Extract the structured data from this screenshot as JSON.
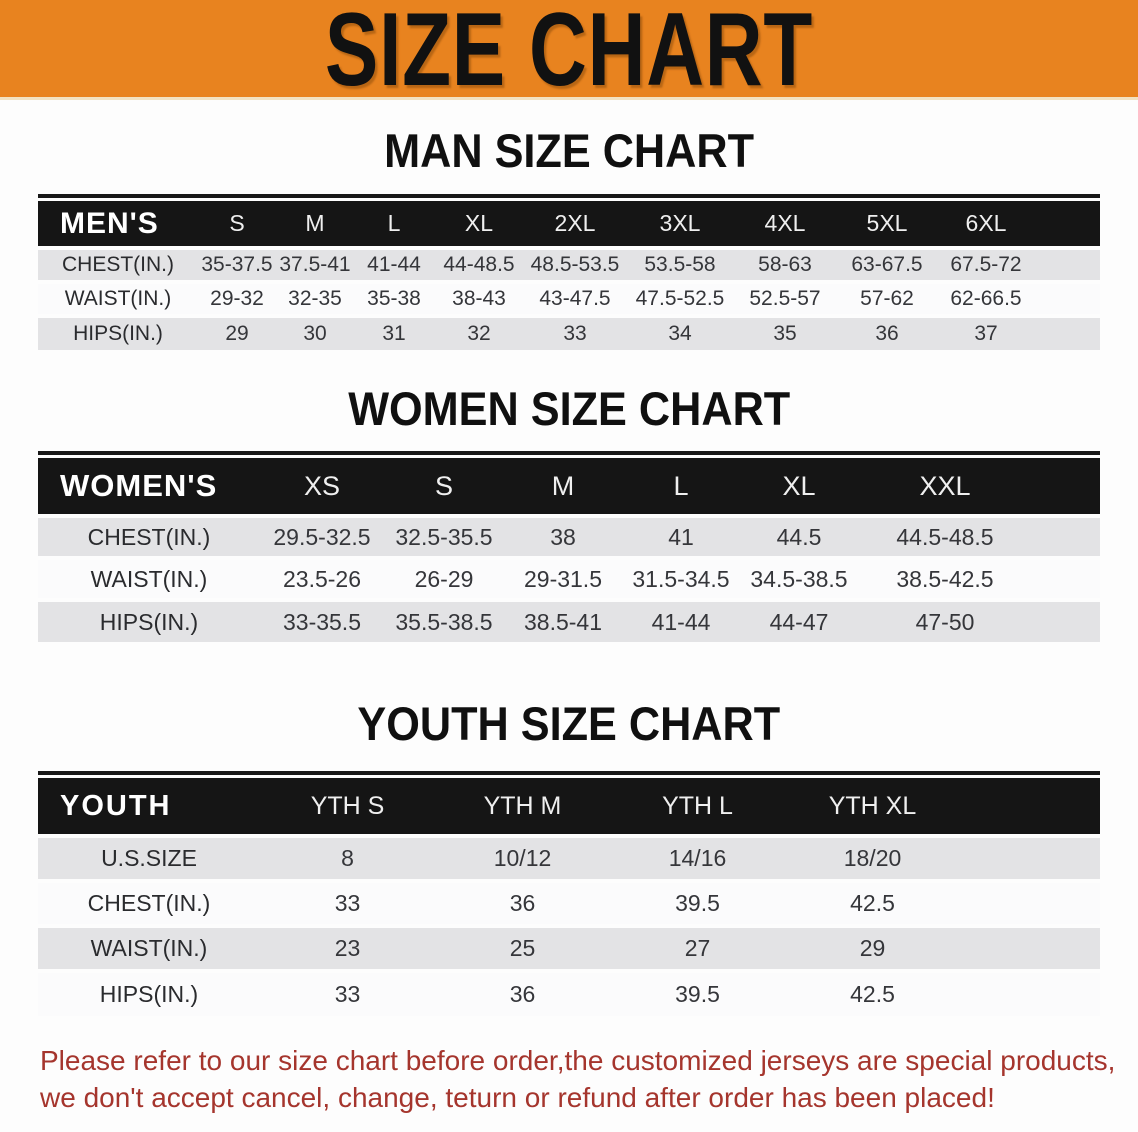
{
  "banner": {
    "title": "SIZE CHART",
    "bg_color": "#E8831F"
  },
  "chart_data": [
    {
      "type": "table",
      "title": "MAN SIZE CHART",
      "group_label": "MEN'S",
      "columns": [
        "S",
        "M",
        "L",
        "XL",
        "2XL",
        "3XL",
        "4XL",
        "5XL",
        "6XL"
      ],
      "rows": [
        {
          "label": "CHEST(IN.)",
          "values": [
            "35-37.5",
            "37.5-41",
            "41-44",
            "44-48.5",
            "48.5-53.5",
            "53.5-58",
            "58-63",
            "63-67.5",
            "67.5-72"
          ]
        },
        {
          "label": "WAIST(IN.)",
          "values": [
            "29-32",
            "32-35",
            "35-38",
            "38-43",
            "43-47.5",
            "47.5-52.5",
            "52.5-57",
            "57-62",
            "62-66.5"
          ]
        },
        {
          "label": "HIPS(IN.)",
          "values": [
            "29",
            "30",
            "31",
            "32",
            "33",
            "34",
            "35",
            "36",
            "37"
          ]
        }
      ]
    },
    {
      "type": "table",
      "title": "WOMEN SIZE CHART",
      "group_label": "WOMEN'S",
      "columns": [
        "XS",
        "S",
        "M",
        "L",
        "XL",
        "XXL"
      ],
      "rows": [
        {
          "label": "CHEST(IN.)",
          "values": [
            "29.5-32.5",
            "32.5-35.5",
            "38",
            "41",
            "44.5",
            "44.5-48.5"
          ]
        },
        {
          "label": "WAIST(IN.)",
          "values": [
            "23.5-26",
            "26-29",
            "29-31.5",
            "31.5-34.5",
            "34.5-38.5",
            "38.5-42.5"
          ]
        },
        {
          "label": "HIPS(IN.)",
          "values": [
            "33-35.5",
            "35.5-38.5",
            "38.5-41",
            "41-44",
            "44-47",
            "47-50"
          ]
        }
      ]
    },
    {
      "type": "table",
      "title": "YOUTH SIZE CHART",
      "group_label": "YOUTH",
      "columns": [
        "YTH S",
        "YTH M",
        "YTH L",
        "YTH XL"
      ],
      "rows": [
        {
          "label": "U.S.SIZE",
          "values": [
            "8",
            "10/12",
            "14/16",
            "18/20"
          ]
        },
        {
          "label": "CHEST(IN.)",
          "values": [
            "33",
            "36",
            "39.5",
            "42.5"
          ]
        },
        {
          "label": "WAIST(IN.)",
          "values": [
            "23",
            "25",
            "27",
            "29"
          ]
        },
        {
          "label": "HIPS(IN.)",
          "values": [
            "33",
            "36",
            "39.5",
            "42.5"
          ]
        }
      ]
    }
  ],
  "disclaimer": {
    "line1": "Please refer to our size chart before order,the customized jerseys are special products,",
    "line2": "we don't accept cancel, change, teturn or refund after order has been placed!",
    "text_color": "#A5352D"
  },
  "colors": {
    "banner_orange": "#E8831F",
    "table_header_black": "#151515",
    "row_stripe_gray": "#E3E3E5",
    "row_stripe_white": "#FBFBFC"
  }
}
